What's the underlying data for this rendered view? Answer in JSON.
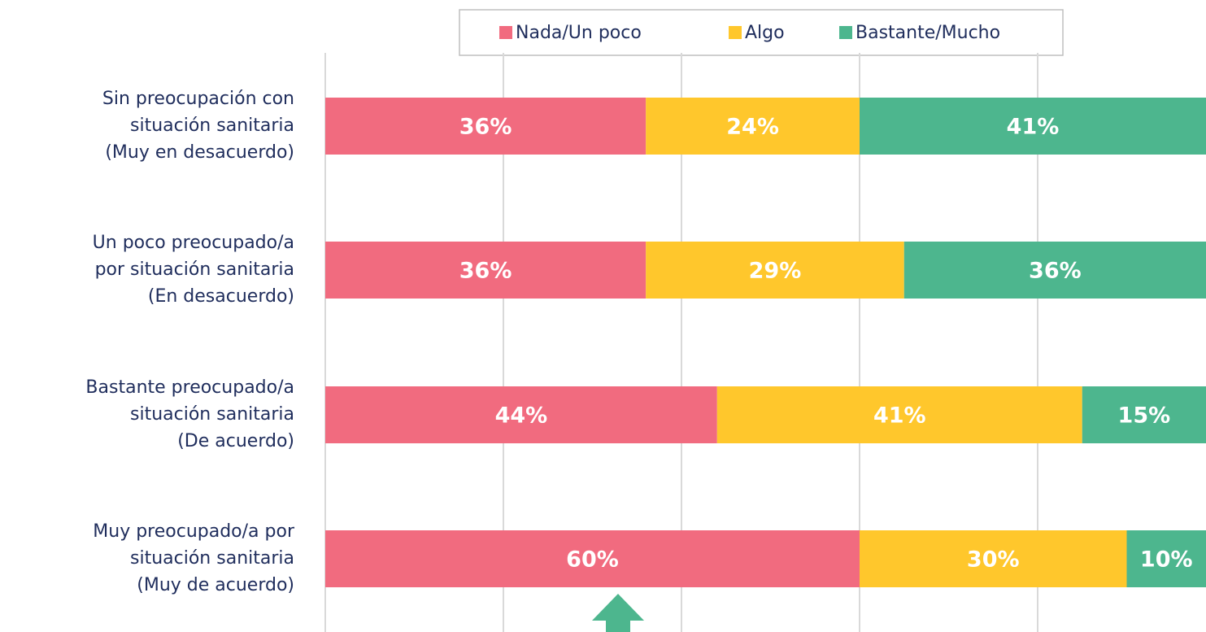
{
  "chart_data": {
    "type": "stacked-bar-horizontal",
    "categories": [
      [
        "Sin preocupación con",
        "situación sanitaria",
        "(Muy en desacuerdo)"
      ],
      [
        "Un poco preocupado/a",
        "por situación sanitaria",
        "(En desacuerdo)"
      ],
      [
        "Bastante preocupado/a",
        "situación sanitaria",
        "(De acuerdo)"
      ],
      [
        "Muy preocupado/a por",
        "situación sanitaria",
        "(Muy de acuerdo)"
      ]
    ],
    "series": [
      {
        "name": "Nada/Un poco",
        "color": "#f16b7f",
        "values": [
          36,
          36,
          44,
          60
        ],
        "value_labels": [
          "36%",
          "36%",
          "44%",
          "60%"
        ]
      },
      {
        "name": "Algo",
        "color": "#ffc72c",
        "values": [
          24,
          29,
          41,
          30
        ],
        "value_labels": [
          "24%",
          "29%",
          "41%",
          "30%"
        ]
      },
      {
        "name": "Bastante/Mucho",
        "color": "#4db68e",
        "values": [
          41,
          36,
          15,
          10
        ],
        "value_labels": [
          "41%",
          "36%",
          "15%",
          "10%"
        ]
      }
    ],
    "xlim": [
      0,
      100
    ],
    "xticks": [
      0,
      20,
      40,
      60,
      80
    ],
    "grid": true,
    "legend": "top"
  }
}
